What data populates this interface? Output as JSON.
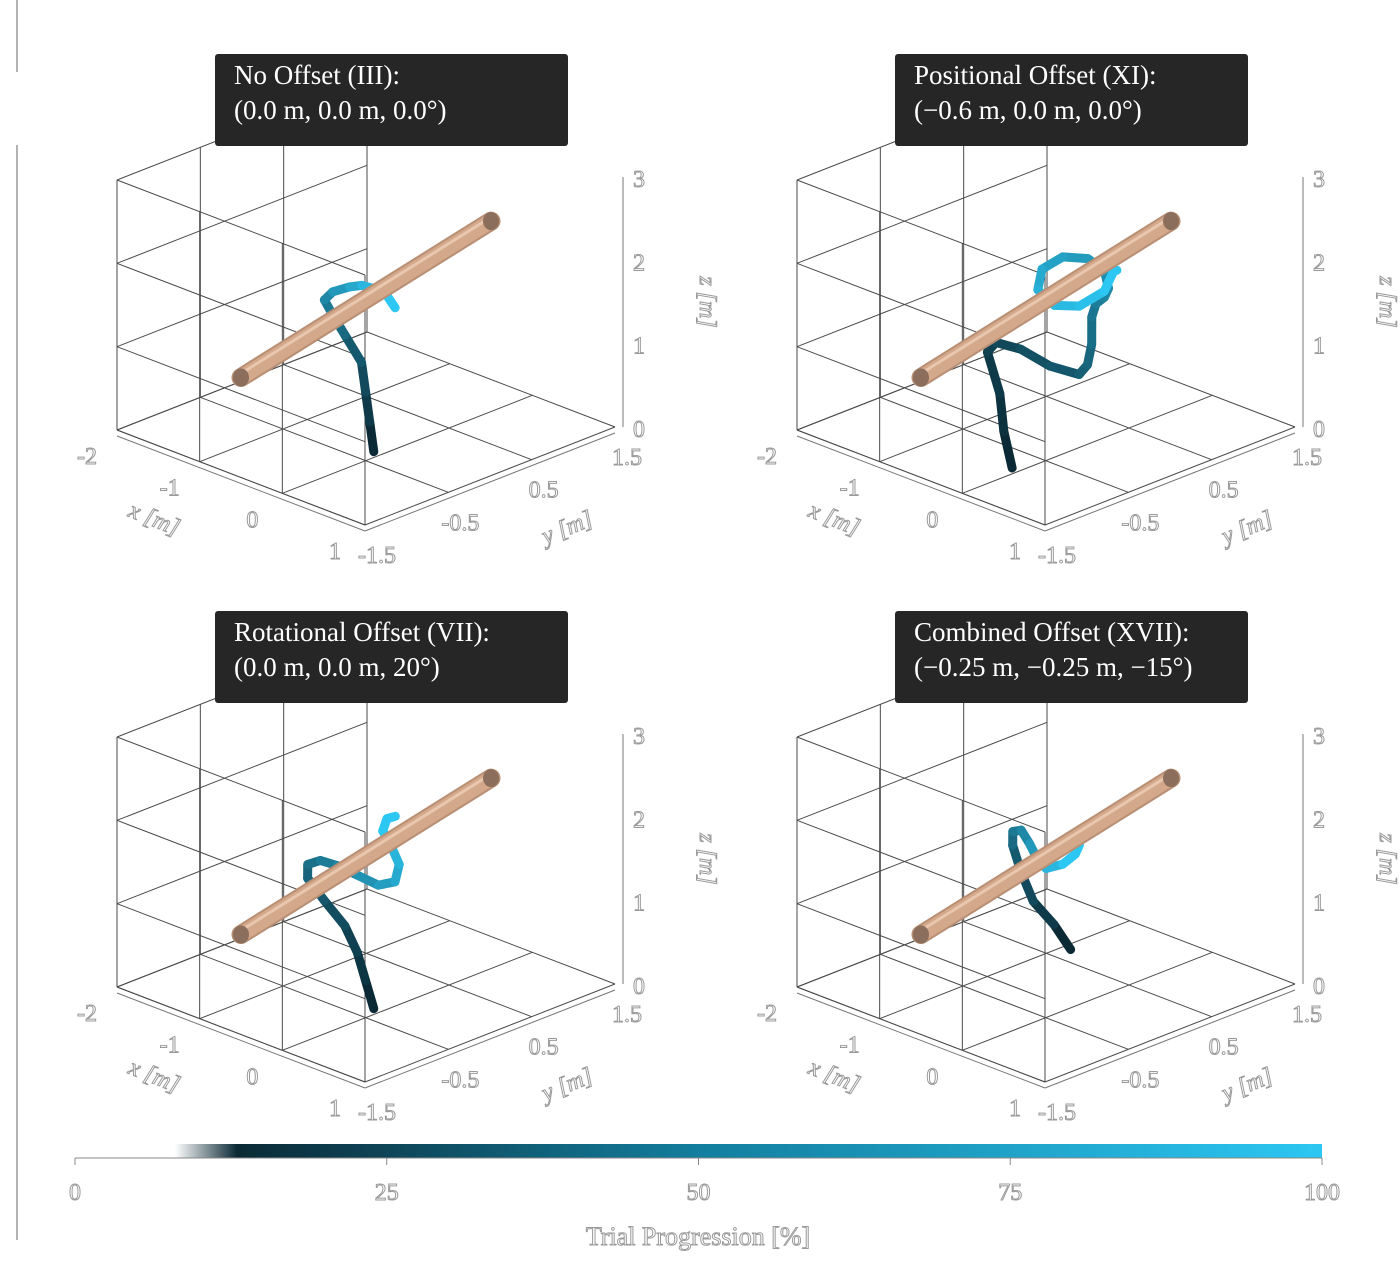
{
  "chart_data": [
    {
      "type": "line3d",
      "title_line1": "No Offset (III):",
      "title_line2": "(0.0 m, 0.0 m, 0.0°)",
      "xlabel": "x [m]",
      "ylabel": "y [m]",
      "zlabel": "z [m]",
      "x_ticks": [
        "-2",
        "-1",
        "0",
        "1"
      ],
      "y_ticks": [
        "-1.5",
        "-0.5",
        "0.5",
        "1.5"
      ],
      "z_ticks": [
        "0",
        "1",
        "2",
        "3"
      ],
      "xlim": [
        -2,
        1
      ],
      "ylim": [
        -1.5,
        1.5
      ],
      "zlim": [
        0,
        3
      ],
      "rod": {
        "start": [
          -0.5,
          -1.5,
          1.2
        ],
        "end": [
          -0.5,
          1.5,
          1.9
        ],
        "color": "#d4a88a"
      },
      "trajectory": [
        [
          0.3,
          -0.7,
          0.3
        ],
        [
          0.2,
          -0.65,
          0.6
        ],
        [
          0.1,
          -0.6,
          0.9
        ],
        [
          0.0,
          -0.55,
          1.2
        ],
        [
          -0.2,
          -0.55,
          1.45
        ],
        [
          -0.4,
          -0.5,
          1.6
        ],
        [
          -0.55,
          -0.45,
          1.7
        ],
        [
          -0.6,
          -0.3,
          1.72
        ],
        [
          -0.6,
          -0.1,
          1.7
        ],
        [
          -0.6,
          0.05,
          1.66
        ],
        [
          -0.55,
          0.15,
          1.6
        ],
        [
          -0.5,
          0.25,
          1.5
        ],
        [
          -0.45,
          0.3,
          1.35
        ]
      ]
    },
    {
      "type": "line3d",
      "title_line1": "Positional Offset (XI):",
      "title_line2": "(−0.6 m, 0.0 m, 0.0°)",
      "xlabel": "x [m]",
      "ylabel": "y [m]",
      "zlabel": "z [m]",
      "x_ticks": [
        "-2",
        "-1",
        "0",
        "1"
      ],
      "y_ticks": [
        "-1.5",
        "-0.5",
        "0.5",
        "1.5"
      ],
      "z_ticks": [
        "0",
        "1",
        "2",
        "3"
      ],
      "xlim": [
        -2,
        1
      ],
      "ylim": [
        -1.5,
        1.5
      ],
      "zlim": [
        0,
        3
      ],
      "rod": {
        "start": [
          -0.5,
          -1.5,
          1.2
        ],
        "end": [
          -0.5,
          1.5,
          1.9
        ],
        "color": "#d4a88a"
      },
      "trajectory": [
        [
          0.3,
          -1.2,
          0.3
        ],
        [
          0.2,
          -1.2,
          0.7
        ],
        [
          0.1,
          -1.15,
          1.1
        ],
        [
          -0.1,
          -1.1,
          1.5
        ],
        [
          -0.2,
          -0.9,
          1.5
        ],
        [
          -0.2,
          -0.6,
          1.3
        ],
        [
          -0.15,
          -0.3,
          1.0
        ],
        [
          -0.1,
          0.0,
          0.8
        ],
        [
          -0.2,
          0.2,
          0.8
        ],
        [
          -0.3,
          0.35,
          0.95
        ],
        [
          -0.4,
          0.45,
          1.2
        ],
        [
          -0.45,
          0.55,
          1.3
        ],
        [
          -0.5,
          0.7,
          1.3
        ],
        [
          -0.55,
          0.8,
          1.35
        ],
        [
          -0.65,
          0.85,
          1.5
        ],
        [
          -0.75,
          0.75,
          1.65
        ],
        [
          -0.8,
          0.5,
          1.75
        ],
        [
          -0.8,
          0.25,
          1.7
        ],
        [
          -0.7,
          0.1,
          1.55
        ],
        [
          -0.55,
          0.15,
          1.4
        ],
        [
          -0.45,
          0.35,
          1.35
        ],
        [
          -0.4,
          0.6,
          1.45
        ],
        [
          -0.5,
          0.8,
          1.55
        ],
        [
          -0.6,
          0.9,
          1.5
        ],
        [
          -0.65,
          1.0,
          1.45
        ]
      ]
    },
    {
      "type": "line3d",
      "title_line1": "Rotational Offset (VII):",
      "title_line2": "(0.0 m, 0.0 m, 20°)",
      "xlabel": "x [m]",
      "ylabel": "y [m]",
      "zlabel": "z [m]",
      "x_ticks": [
        "-2",
        "-1",
        "0",
        "1"
      ],
      "y_ticks": [
        "-1.5",
        "-0.5",
        "0.5",
        "1.5"
      ],
      "z_ticks": [
        "0",
        "1",
        "2",
        "3"
      ],
      "xlim": [
        -2,
        1
      ],
      "ylim": [
        -1.5,
        1.5
      ],
      "zlim": [
        0,
        3
      ],
      "rod": {
        "start": [
          -0.5,
          -1.5,
          1.2
        ],
        "end": [
          -0.5,
          1.5,
          1.9
        ],
        "color": "#d4a88a"
      },
      "trajectory": [
        [
          0.3,
          -0.7,
          0.3
        ],
        [
          0.2,
          -0.7,
          0.6
        ],
        [
          0.1,
          -0.7,
          0.9
        ],
        [
          0.0,
          -0.75,
          1.2
        ],
        [
          -0.2,
          -0.8,
          1.45
        ],
        [
          -0.45,
          -0.75,
          1.6
        ],
        [
          -0.6,
          -0.6,
          1.65
        ],
        [
          -0.65,
          -0.4,
          1.6
        ],
        [
          -0.6,
          -0.25,
          1.5
        ],
        [
          -0.45,
          -0.15,
          1.4
        ],
        [
          -0.3,
          -0.05,
          1.3
        ],
        [
          -0.25,
          0.1,
          1.3
        ],
        [
          -0.3,
          0.2,
          1.45
        ],
        [
          -0.45,
          0.25,
          1.6
        ],
        [
          -0.6,
          0.3,
          1.7
        ],
        [
          -0.7,
          0.45,
          1.75
        ],
        [
          -0.75,
          0.6,
          1.7
        ]
      ]
    },
    {
      "type": "line3d",
      "title_line1": "Combined Offset (XVII):",
      "title_line2": "(−0.25 m, −0.25 m, −15°)",
      "xlabel": "x [m]",
      "ylabel": "y [m]",
      "zlabel": "z [m]",
      "x_ticks": [
        "-2",
        "-1",
        "0",
        "1"
      ],
      "y_ticks": [
        "-1.5",
        "-0.5",
        "0.5",
        "1.5"
      ],
      "z_ticks": [
        "0",
        "1",
        "2",
        "3"
      ],
      "xlim": [
        -2,
        1
      ],
      "ylim": [
        -1.5,
        1.5
      ],
      "zlim": [
        0,
        3
      ],
      "rod": {
        "start": [
          -0.5,
          -1.5,
          1.2
        ],
        "end": [
          -0.5,
          1.5,
          1.9
        ],
        "color": "#d4a88a"
      },
      "trajectory": [
        [
          0.0,
          -0.2,
          0.7
        ],
        [
          -0.1,
          -0.3,
          1.0
        ],
        [
          -0.2,
          -0.45,
          1.3
        ],
        [
          -0.35,
          -0.45,
          1.6
        ],
        [
          -0.55,
          -0.35,
          1.8
        ],
        [
          -0.7,
          -0.2,
          1.85
        ],
        [
          -0.8,
          0.0,
          1.75
        ],
        [
          -0.8,
          0.1,
          1.55
        ],
        [
          -0.75,
          0.15,
          1.35
        ],
        [
          -0.7,
          0.2,
          1.25
        ],
        [
          -0.6,
          0.3,
          1.3
        ],
        [
          -0.55,
          0.4,
          1.4
        ],
        [
          -0.6,
          0.5,
          1.45
        ]
      ]
    }
  ],
  "colorbar": {
    "label": "Trial Progression [%]",
    "ticks": [
      "0",
      "25",
      "50",
      "75",
      "100"
    ],
    "range": [
      0,
      100
    ],
    "color_start": "#ffffff",
    "color_dark": "#0b2a36",
    "color_end": "#2cc7f2"
  },
  "colors": {
    "title_box": "#262626",
    "grid": "#4a4a4a",
    "rod": "#d4a88a"
  }
}
